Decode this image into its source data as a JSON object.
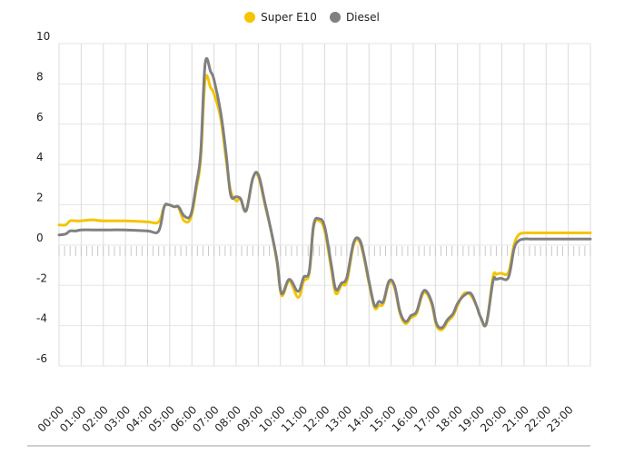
{
  "legend": {
    "items": [
      {
        "label": "Super E10",
        "color": "#F5C400"
      },
      {
        "label": "Diesel",
        "color": "#808080"
      }
    ]
  },
  "chart_data": {
    "type": "line",
    "title": "",
    "xlabel": "",
    "ylabel": "",
    "ylim": [
      -6,
      10
    ],
    "yticks": [
      10,
      8,
      6,
      4,
      2,
      0,
      -2,
      -4,
      -6
    ],
    "xlim": [
      0,
      24
    ],
    "grid": true,
    "legend_position": "top-center",
    "x_tick_labels": [
      "00:00",
      "01:00",
      "02:00",
      "03:00",
      "04:00",
      "05:00",
      "06:00",
      "07:00",
      "08:00",
      "09:00",
      "10:00",
      "11:00",
      "12:00",
      "13:00",
      "14:00",
      "15:00",
      "16:00",
      "17:00",
      "18:00",
      "19:00",
      "20:00",
      "21:00",
      "22:00",
      "23:00"
    ],
    "series": [
      {
        "name": "Super E10",
        "color": "#F5C400",
        "x": [
          0.0,
          0.3,
          0.5,
          0.75,
          1.0,
          1.5,
          2.0,
          3.0,
          4.0,
          4.5,
          4.75,
          4.95,
          5.2,
          5.4,
          5.65,
          5.95,
          6.2,
          6.4,
          6.6,
          6.85,
          7.0,
          7.3,
          7.55,
          7.75,
          8.0,
          8.2,
          8.45,
          8.75,
          9.0,
          9.3,
          9.6,
          9.85,
          10.05,
          10.4,
          10.8,
          11.05,
          11.3,
          11.5,
          11.75,
          12.0,
          12.3,
          12.5,
          12.75,
          13.0,
          13.3,
          13.55,
          13.75,
          14.0,
          14.25,
          14.45,
          14.65,
          14.9,
          15.15,
          15.4,
          15.65,
          15.9,
          16.15,
          16.4,
          16.6,
          16.85,
          17.05,
          17.3,
          17.55,
          17.8,
          18.0,
          18.3,
          18.6,
          18.85,
          19.05,
          19.3,
          19.6,
          19.75,
          19.95,
          20.3,
          20.55,
          20.75,
          21.0,
          21.3,
          21.55,
          21.75,
          21.85,
          22.0,
          22.3,
          22.5,
          22.75,
          23.0,
          23.3,
          23.55,
          23.8,
          24.0
        ],
        "values": [
          1.0,
          1.0,
          1.2,
          1.2,
          1.2,
          1.25,
          1.2,
          1.2,
          1.15,
          1.15,
          1.9,
          2.0,
          1.9,
          1.85,
          1.2,
          1.35,
          2.8,
          4.3,
          8.2,
          7.8,
          7.5,
          6.3,
          4.2,
          2.7,
          2.2,
          2.3,
          1.7,
          3.3,
          3.4,
          2.0,
          0.6,
          -0.9,
          -2.5,
          -1.8,
          -2.6,
          -1.8,
          -1.4,
          0.9,
          1.2,
          0.7,
          -1.2,
          -2.4,
          -2.0,
          -1.8,
          0.0,
          0.2,
          -0.5,
          -1.9,
          -3.1,
          -3.0,
          -2.9,
          -1.9,
          -2.1,
          -3.4,
          -3.9,
          -3.6,
          -3.4,
          -2.5,
          -2.4,
          -3.0,
          -4.0,
          -4.2,
          -3.8,
          -3.5,
          -3.0,
          -2.4,
          -2.5,
          -3.0,
          -3.6,
          -3.9,
          -1.6,
          -1.45,
          -1.4,
          -1.35,
          0.0,
          0.5,
          0.6,
          0.6,
          0.6,
          0.6,
          0.6,
          0.6,
          0.6,
          0.6,
          0.6,
          0.6,
          0.6,
          0.6,
          0.6,
          0.6
        ]
      },
      {
        "name": "Diesel",
        "color": "#808080",
        "x": [
          0.0,
          0.3,
          0.5,
          0.75,
          1.0,
          1.5,
          2.0,
          3.0,
          4.0,
          4.5,
          4.75,
          4.95,
          5.2,
          5.4,
          5.65,
          5.95,
          6.2,
          6.4,
          6.6,
          6.85,
          7.0,
          7.3,
          7.55,
          7.75,
          8.0,
          8.2,
          8.45,
          8.75,
          9.0,
          9.3,
          9.6,
          9.85,
          10.05,
          10.4,
          10.8,
          11.05,
          11.3,
          11.5,
          11.75,
          12.0,
          12.3,
          12.5,
          12.75,
          13.0,
          13.3,
          13.55,
          13.75,
          14.0,
          14.25,
          14.45,
          14.65,
          14.9,
          15.15,
          15.4,
          15.65,
          15.9,
          16.15,
          16.4,
          16.6,
          16.85,
          17.05,
          17.3,
          17.55,
          17.8,
          18.0,
          18.3,
          18.6,
          18.85,
          19.05,
          19.3,
          19.6,
          19.75,
          19.95,
          20.3,
          20.55,
          20.75,
          21.0,
          21.3,
          21.55,
          21.75,
          21.85,
          22.0,
          22.3,
          22.5,
          22.75,
          23.0,
          23.3,
          23.55,
          23.8,
          24.0
        ],
        "values": [
          0.5,
          0.55,
          0.7,
          0.7,
          0.75,
          0.75,
          0.75,
          0.75,
          0.7,
          0.7,
          1.9,
          2.0,
          1.9,
          1.9,
          1.45,
          1.5,
          3.0,
          4.6,
          9.0,
          8.6,
          8.2,
          6.6,
          4.5,
          2.5,
          2.4,
          2.3,
          1.7,
          3.3,
          3.5,
          2.1,
          0.6,
          -0.8,
          -2.4,
          -1.7,
          -2.3,
          -1.6,
          -1.3,
          1.0,
          1.3,
          0.9,
          -1.0,
          -2.2,
          -1.9,
          -1.6,
          0.1,
          0.3,
          -0.4,
          -1.8,
          -3.0,
          -2.8,
          -2.8,
          -1.8,
          -2.0,
          -3.3,
          -3.8,
          -3.5,
          -3.3,
          -2.4,
          -2.3,
          -2.9,
          -3.9,
          -4.1,
          -3.7,
          -3.4,
          -2.9,
          -2.5,
          -2.4,
          -3.0,
          -3.6,
          -3.9,
          -1.8,
          -1.7,
          -1.65,
          -1.6,
          -0.2,
          0.2,
          0.3,
          0.3,
          0.3,
          0.3,
          0.3,
          0.3,
          0.3,
          0.3,
          0.3,
          0.3,
          0.3,
          0.3,
          0.3,
          0.3
        ]
      }
    ]
  }
}
